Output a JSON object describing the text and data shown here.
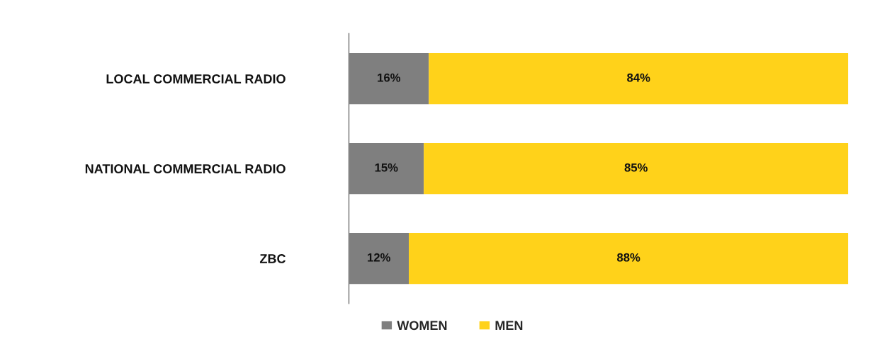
{
  "chart_data": {
    "type": "bar",
    "orientation": "horizontal",
    "stacked": true,
    "categories": [
      "LOCAL COMMERCIAL RADIO",
      "NATIONAL COMMERCIAL RADIO",
      "ZBC"
    ],
    "series": [
      {
        "name": "WOMEN",
        "color": "#7f7f7f",
        "values": [
          16,
          15,
          12
        ],
        "value_labels": [
          "16%",
          "15%",
          "12%"
        ]
      },
      {
        "name": "MEN",
        "color": "#ffd21a",
        "values": [
          84,
          85,
          88
        ],
        "value_labels": [
          "84%",
          "85%",
          "88%"
        ]
      }
    ],
    "xlim": [
      0,
      100
    ],
    "tick_labels": "y",
    "grid": false,
    "legend": "bottom"
  }
}
